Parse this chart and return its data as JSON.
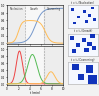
{
  "background": "#f2f2f2",
  "stage_labels": [
    "Nucleation",
    "Growth",
    "Coarsening"
  ],
  "vf_color": "#7799cc",
  "nd_color": "#ffbb55",
  "nuc_color": "#ee4444",
  "grow_color": "#55bb55",
  "coars_color": "#ffbb55",
  "scatter_color": "#1133bb",
  "divider_color": "#999999",
  "panel_bg": "#ffffff",
  "scatter_panels": [
    {
      "title": "t = t₁ (Nucleation)",
      "points": [
        [
          0.15,
          0.82
        ],
        [
          0.55,
          0.72
        ],
        [
          0.82,
          0.88
        ],
        [
          0.35,
          0.48
        ],
        [
          0.72,
          0.55
        ],
        [
          0.22,
          0.22
        ],
        [
          0.62,
          0.28
        ],
        [
          0.88,
          0.38
        ]
      ],
      "sizes": [
        4,
        4,
        4,
        4,
        4,
        4,
        4,
        4
      ]
    },
    {
      "title": "t = t₂ (Growth)",
      "points": [
        [
          0.15,
          0.82
        ],
        [
          0.55,
          0.72
        ],
        [
          0.82,
          0.88
        ],
        [
          0.35,
          0.48
        ],
        [
          0.72,
          0.55
        ],
        [
          0.22,
          0.22
        ],
        [
          0.62,
          0.28
        ],
        [
          0.88,
          0.38
        ]
      ],
      "sizes": [
        9,
        9,
        9,
        9,
        9,
        9,
        9,
        9
      ]
    },
    {
      "title": "t = t₃ (Coarsening)",
      "points": [
        [
          0.25,
          0.78
        ],
        [
          0.72,
          0.68
        ],
        [
          0.45,
          0.32
        ],
        [
          0.82,
          0.22
        ]
      ],
      "sizes": [
        22,
        28,
        18,
        38
      ]
    }
  ],
  "t1_div": 3.2,
  "t2_div": 6.5,
  "xlabel": "t (min)"
}
